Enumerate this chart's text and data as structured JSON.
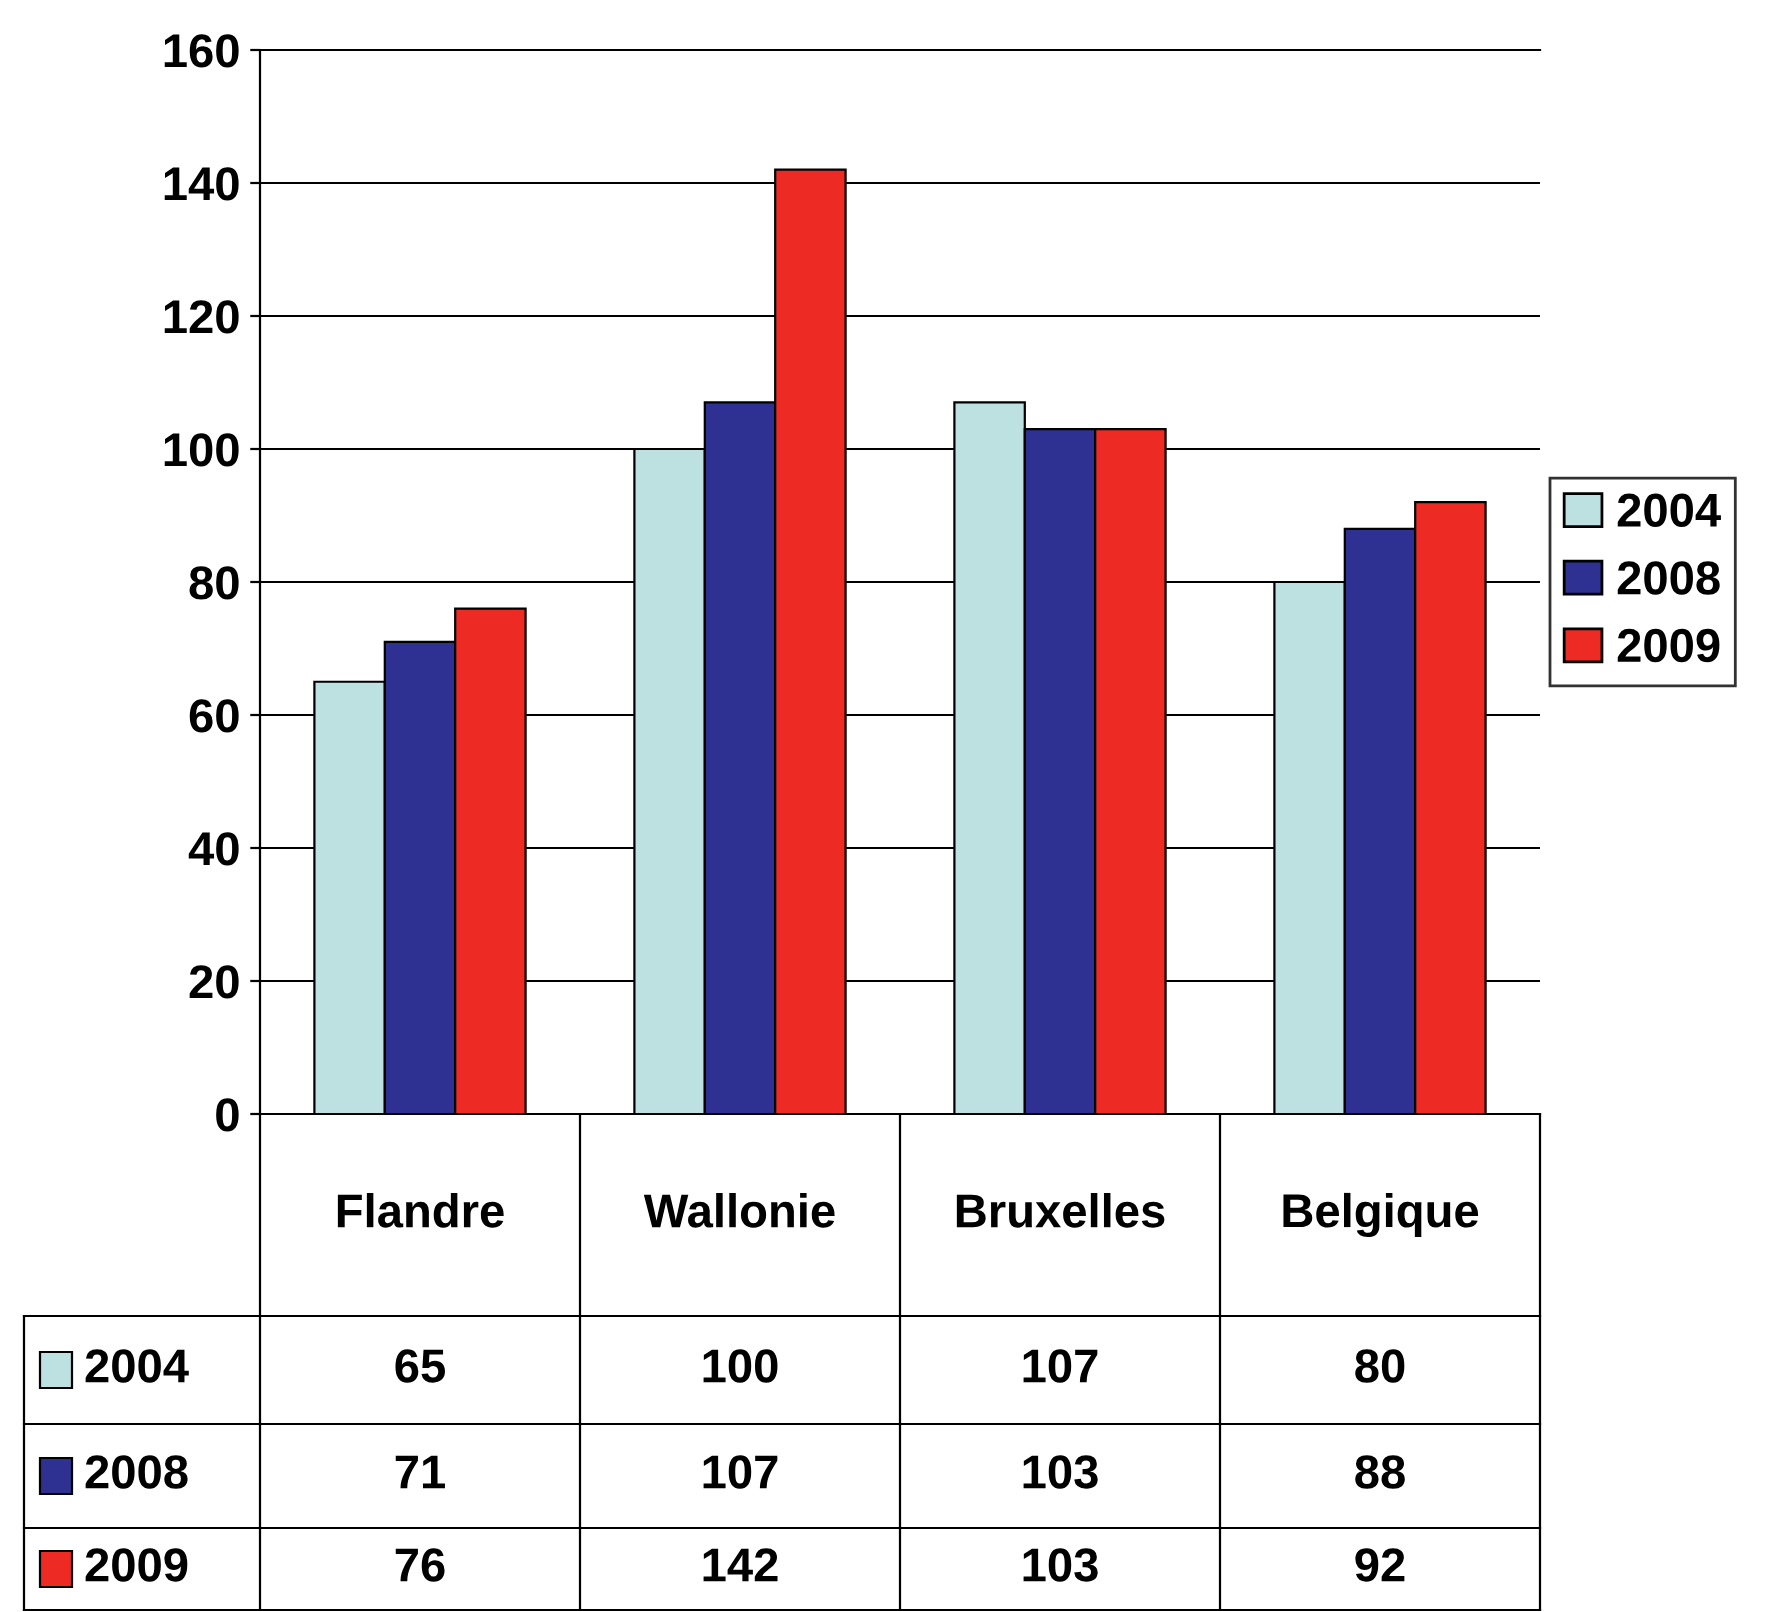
{
  "chart_data": {
    "type": "bar",
    "categories": [
      "Flandre",
      "Wallonie",
      "Bruxelles",
      "Belgique"
    ],
    "series": [
      {
        "name": "2004",
        "color": "#bde0e0",
        "values": [
          65,
          100,
          107,
          80
        ]
      },
      {
        "name": "2008",
        "color": "#2e3192",
        "values": [
          71,
          107,
          103,
          88
        ]
      },
      {
        "name": "2009",
        "color": "#ee2a24",
        "values": [
          76,
          142,
          103,
          92
        ]
      }
    ],
    "ylim": [
      0,
      160
    ],
    "yticks": [
      0,
      20,
      40,
      60,
      80,
      100,
      120,
      140,
      160
    ],
    "grid": "y",
    "legend": "right",
    "data_labels": true
  }
}
